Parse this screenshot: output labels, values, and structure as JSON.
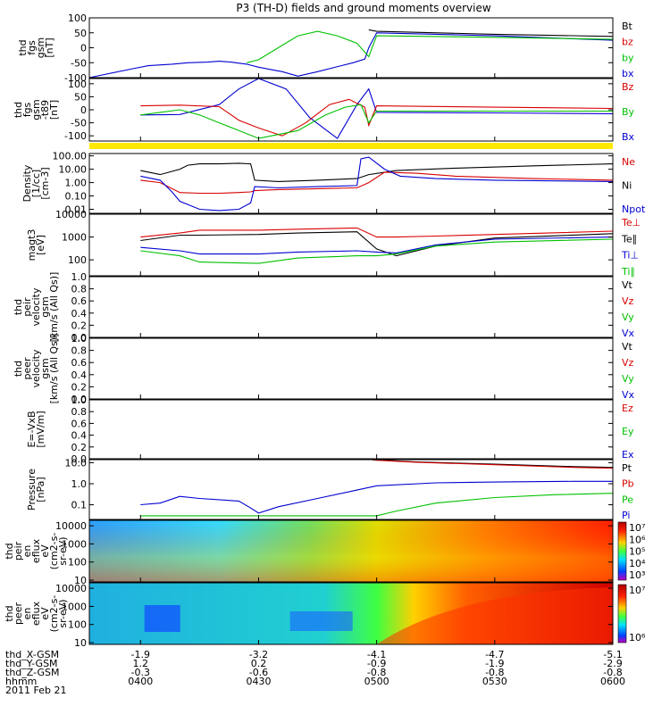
{
  "title": "P3 (TH-D) fields and ground moments overview",
  "colors": {
    "black": "#000000",
    "red": "#d80000",
    "green": "#00c000",
    "blue": "#0000d0",
    "yellow": "#ffe800"
  },
  "chart_data": [
    {
      "type": "line",
      "panel": "fgs",
      "ylabel": [
        "thd",
        "fgs",
        "gsm",
        "[nT]"
      ],
      "ylim": [
        -100,
        100
      ],
      "ticks": [
        "100",
        "50",
        "0",
        "-50",
        "-100"
      ],
      "legend": [
        {
          "text": "Bt",
          "color": "black"
        },
        {
          "text": "bz",
          "color": "red"
        },
        {
          "text": "by",
          "color": "green"
        },
        {
          "text": "bx",
          "color": "blue"
        }
      ],
      "series": [
        {
          "name": "bx",
          "color": "blue",
          "x": [
            "03:47",
            "03:58",
            "04:02",
            "04:08",
            "04:12",
            "04:17",
            "04:20",
            "04:23",
            "04:27",
            "04:30",
            "04:36",
            "04:40",
            "04:45",
            "04:51",
            "04:54",
            "04:57",
            "04:58",
            "05:00",
            "05:30",
            "06:00"
          ],
          "y": [
            -100,
            -70,
            -60,
            -55,
            -50,
            -48,
            -45,
            -48,
            -55,
            -65,
            -80,
            -95,
            -80,
            -60,
            -50,
            -38,
            0,
            50,
            40,
            25
          ]
        },
        {
          "name": "by",
          "color": "green",
          "x": [
            "04:27",
            "04:30",
            "04:35",
            "04:40",
            "04:45",
            "04:50",
            "04:55",
            "04:58",
            "05:00",
            "05:30",
            "06:00"
          ],
          "y": [
            -50,
            -40,
            0,
            40,
            55,
            40,
            15,
            -30,
            40,
            35,
            28
          ]
        },
        {
          "name": "Bt",
          "color": "black",
          "x": [
            "04:58",
            "05:00",
            "05:30",
            "06:00"
          ],
          "y": [
            60,
            55,
            45,
            38
          ]
        }
      ]
    },
    {
      "type": "line",
      "panel": "fgs_t89",
      "ylabel": [
        "thd",
        "fgs",
        "gsm",
        "-t89",
        "[nT]"
      ],
      "ylim": [
        -120,
        120
      ],
      "ticks": [
        "100",
        "50",
        "0",
        "-50",
        "-100"
      ],
      "legend": [
        {
          "text": "Bz",
          "color": "red"
        },
        {
          "text": "By",
          "color": "green"
        },
        {
          "text": "Bx",
          "color": "blue"
        }
      ],
      "series": [
        {
          "name": "Bx",
          "color": "blue",
          "x": [
            "04:00",
            "04:10",
            "04:20",
            "04:25",
            "04:30",
            "04:37",
            "04:43",
            "04:50",
            "04:55",
            "04:58",
            "05:00",
            "05:30",
            "06:00"
          ],
          "y": [
            -20,
            -18,
            20,
            80,
            120,
            80,
            -30,
            -110,
            20,
            80,
            -10,
            -12,
            -15
          ]
        },
        {
          "name": "Bz",
          "color": "red",
          "x": [
            "04:00",
            "04:10",
            "04:20",
            "04:25",
            "04:30",
            "04:36",
            "04:42",
            "04:48",
            "04:53",
            "04:57",
            "04:58",
            "05:00",
            "05:30",
            "06:00"
          ],
          "y": [
            15,
            18,
            12,
            -40,
            -70,
            -100,
            -50,
            20,
            40,
            10,
            -60,
            15,
            10,
            5
          ]
        },
        {
          "name": "By",
          "color": "green",
          "x": [
            "04:00",
            "04:05",
            "04:10",
            "04:15",
            "04:20",
            "04:25",
            "04:30",
            "04:40",
            "04:47",
            "04:52",
            "04:56",
            "04:58",
            "05:00",
            "05:30",
            "06:00"
          ],
          "y": [
            -20,
            -10,
            0,
            -20,
            -50,
            -80,
            -110,
            -80,
            -20,
            10,
            20,
            -50,
            -5,
            -5,
            -5
          ]
        }
      ]
    },
    {
      "type": "line",
      "panel": "density",
      "scale": "log",
      "ylabel": [
        "Density",
        "[1/cc]",
        "[cm-3]"
      ],
      "ylim": [
        0.005,
        150
      ],
      "ticks": [
        "100.00",
        "10.00",
        "1.00",
        "0.10",
        "0.01"
      ],
      "legend": [
        {
          "text": "Ne",
          "color": "red"
        },
        {
          "text": "Ni",
          "color": "black"
        },
        {
          "text": "Npot",
          "color": "blue"
        }
      ],
      "series": [
        {
          "name": "Ni",
          "color": "black",
          "x": [
            "04:00",
            "04:05",
            "04:10",
            "04:12",
            "04:15",
            "04:20",
            "04:25",
            "04:28",
            "04:29",
            "04:35",
            "04:45",
            "04:55",
            "04:58",
            "05:05",
            "05:20",
            "05:40",
            "06:00"
          ],
          "y": [
            8,
            4,
            10,
            20,
            25,
            25,
            28,
            25,
            1.5,
            1.2,
            1.5,
            2.0,
            4,
            8,
            12,
            18,
            25
          ]
        },
        {
          "name": "Ne",
          "color": "red",
          "x": [
            "04:00",
            "04:05",
            "04:10",
            "04:15",
            "04:20",
            "04:25",
            "04:28",
            "04:29",
            "04:35",
            "04:45",
            "04:55",
            "04:58",
            "05:02",
            "05:10",
            "05:20",
            "05:40",
            "06:00"
          ],
          "y": [
            1.5,
            1.0,
            0.18,
            0.16,
            0.16,
            0.18,
            0.2,
            0.25,
            0.3,
            0.35,
            0.4,
            1.0,
            6,
            5,
            3,
            2,
            1.5
          ]
        },
        {
          "name": "Npot",
          "color": "blue",
          "x": [
            "04:00",
            "04:05",
            "04:08",
            "04:10",
            "04:15",
            "04:20",
            "04:25",
            "04:28",
            "04:29",
            "04:35",
            "04:45",
            "04:55",
            "04:56",
            "04:58",
            "05:02",
            "05:06",
            "05:15",
            "05:30",
            "06:00"
          ],
          "y": [
            3,
            1.5,
            0.2,
            0.04,
            0.01,
            0.008,
            0.01,
            0.03,
            0.5,
            0.4,
            0.5,
            0.6,
            60,
            80,
            10,
            3,
            2,
            1.5,
            1.2
          ]
        }
      ]
    },
    {
      "type": "line",
      "panel": "temperature",
      "scale": "log",
      "ylabel": [
        "magt3",
        "[eV]"
      ],
      "ylim": [
        20,
        10000
      ],
      "ticks": [
        "10000",
        "1000",
        "100"
      ],
      "legend": [
        {
          "text": "Te⊥",
          "color": "red"
        },
        {
          "text": "Te∥",
          "color": "black"
        },
        {
          "text": "Ti⊥",
          "color": "blue"
        },
        {
          "text": "Ti∥",
          "color": "green"
        }
      ],
      "series": [
        {
          "name": "Te⊥",
          "color": "red",
          "x": [
            "04:00",
            "04:10",
            "04:15",
            "04:30",
            "04:40",
            "04:55",
            "05:00",
            "05:05",
            "05:15",
            "05:30",
            "06:00"
          ],
          "y": [
            1000,
            1500,
            2000,
            2000,
            2200,
            2500,
            1000,
            1000,
            1100,
            1300,
            1800
          ]
        },
        {
          "name": "Te∥",
          "color": "black",
          "x": [
            "04:00",
            "04:10",
            "04:15",
            "04:30",
            "04:40",
            "04:55",
            "05:00",
            "05:05",
            "05:15",
            "05:30",
            "06:00"
          ],
          "y": [
            700,
            1200,
            1200,
            1300,
            1500,
            1700,
            300,
            150,
            400,
            900,
            1400
          ]
        },
        {
          "name": "Ti⊥",
          "color": "blue",
          "x": [
            "04:00",
            "04:10",
            "04:15",
            "04:30",
            "04:40",
            "04:55",
            "05:00",
            "05:05",
            "05:15",
            "05:30",
            "06:00"
          ],
          "y": [
            350,
            250,
            180,
            180,
            220,
            250,
            220,
            200,
            450,
            800,
            1000
          ]
        },
        {
          "name": "Ti∥",
          "color": "green",
          "x": [
            "04:00",
            "04:10",
            "04:15",
            "04:30",
            "04:40",
            "04:55",
            "05:00",
            "05:05",
            "05:15",
            "05:30",
            "06:00"
          ],
          "y": [
            250,
            150,
            80,
            70,
            120,
            150,
            150,
            180,
            400,
            600,
            800
          ]
        }
      ]
    },
    {
      "type": "line",
      "panel": "peir_velocity",
      "ylabel": [
        "thd",
        "peir",
        "velocity",
        "gsm",
        "[km/s (All Qs)]"
      ],
      "ylim": [
        0,
        1
      ],
      "ticks": [
        "1.0",
        "0.8",
        "0.6",
        "0.4",
        "0.2",
        "0.0"
      ],
      "legend": [
        {
          "text": "Vt",
          "color": "black"
        },
        {
          "text": "Vz",
          "color": "red"
        },
        {
          "text": "Vy",
          "color": "green"
        },
        {
          "text": "Vx",
          "color": "blue"
        }
      ],
      "series": []
    },
    {
      "type": "line",
      "panel": "peer_velocity",
      "ylabel": [
        "thd",
        "peer",
        "velocity",
        "gsm",
        "[km/s (All Qs)]"
      ],
      "ylim": [
        0,
        1
      ],
      "ticks": [
        "1.0",
        "0.8",
        "0.6",
        "0.4",
        "0.2",
        "0.0"
      ],
      "legend": [
        {
          "text": "Vt",
          "color": "black"
        },
        {
          "text": "Vz",
          "color": "red"
        },
        {
          "text": "Vy",
          "color": "green"
        },
        {
          "text": "Vx",
          "color": "blue"
        }
      ],
      "series": []
    },
    {
      "type": "line",
      "panel": "efield",
      "ylabel": [
        "E=-VxB",
        "[mV/m]"
      ],
      "ylim": [
        0,
        1
      ],
      "ticks": [
        "1.0",
        "0.8",
        "0.6",
        "0.4",
        "0.2",
        "0.0"
      ],
      "legend": [
        {
          "text": "Ez",
          "color": "red"
        },
        {
          "text": "Ey",
          "color": "green"
        },
        {
          "text": "Ex",
          "color": "blue"
        }
      ],
      "series": []
    },
    {
      "type": "line",
      "panel": "pressure",
      "scale": "log",
      "ylabel": [
        "Pressure",
        "[nPa]"
      ],
      "ylim": [
        0.02,
        14
      ],
      "ticks": [
        "10.0",
        "1.0",
        "0.1"
      ],
      "legend": [
        {
          "text": "Pt",
          "color": "black"
        },
        {
          "text": "Pb",
          "color": "red"
        },
        {
          "text": "Pe",
          "color": "green"
        },
        {
          "text": "Pi",
          "color": "blue"
        }
      ],
      "series": [
        {
          "name": "Pi",
          "color": "blue",
          "x": [
            "04:00",
            "04:05",
            "04:10",
            "04:15",
            "04:25",
            "04:28",
            "04:30",
            "04:35",
            "04:45",
            "04:55",
            "05:00",
            "05:15",
            "05:30",
            "05:50",
            "06:00"
          ],
          "y": [
            0.1,
            0.12,
            0.25,
            0.2,
            0.15,
            0.07,
            0.04,
            0.08,
            0.2,
            0.5,
            0.8,
            1.1,
            1.2,
            1.3,
            1.3
          ]
        },
        {
          "name": "Pe",
          "color": "green",
          "x": [
            "04:00",
            "04:10",
            "04:20",
            "04:30",
            "04:40",
            "04:50",
            "05:00",
            "05:05",
            "05:15",
            "05:30",
            "05:45",
            "06:00"
          ],
          "y": [
            0.03,
            0.03,
            0.03,
            0.03,
            0.03,
            0.03,
            0.03,
            0.05,
            0.12,
            0.22,
            0.3,
            0.35
          ]
        },
        {
          "name": "Pt",
          "color": "black",
          "x": [
            "04:59",
            "05:10",
            "05:30",
            "05:50",
            "06:00"
          ],
          "y": [
            14,
            11,
            8.5,
            6.5,
            6
          ]
        },
        {
          "name": "Pb",
          "color": "red",
          "x": [
            "04:59",
            "05:10",
            "05:30",
            "05:50",
            "06:00"
          ],
          "y": [
            13.5,
            10.5,
            8,
            6,
            5.5
          ]
        }
      ]
    },
    {
      "type": "heatmap",
      "panel": "peir_spectrogram",
      "scale": "log",
      "ylabel": [
        "thd",
        "peir",
        "en",
        "eflux",
        "eV",
        "(cm2-s-",
        "sr-eV)"
      ],
      "ylim": [
        8,
        20000
      ],
      "ticks": [
        "10000",
        "1000",
        "100",
        "10"
      ],
      "colorbar_ticks": [
        "10⁷",
        "10⁶",
        "10⁵",
        "10⁴",
        "10³"
      ]
    },
    {
      "type": "heatmap",
      "panel": "peer_spectrogram",
      "scale": "log",
      "ylabel": [
        "thd",
        "peer",
        "en",
        "eflux",
        "eV",
        "(cm2-s-",
        "sr-eV)"
      ],
      "ylim": [
        8,
        20000
      ],
      "ticks": [
        "10000",
        "1000",
        "100",
        "10"
      ],
      "colorbar_ticks": [
        "10⁷",
        "10⁶"
      ]
    }
  ],
  "xaxis": {
    "xlim": [
      "03:47",
      "06:00"
    ],
    "major_ticks": [
      "04:00",
      "04:30",
      "05:00",
      "05:30",
      "06:00"
    ],
    "rows": [
      {
        "label": "thd_X-GSM",
        "values": [
          "-1.9",
          "-3.2",
          "-4.1",
          "-4.7",
          "-5.1"
        ]
      },
      {
        "label": "thd_Y-GSM",
        "values": [
          "1.2",
          "0.2",
          "-0.9",
          "-1.9",
          "-2.9"
        ]
      },
      {
        "label": "thd_Z-GSM",
        "values": [
          "-0.3",
          "-0.6",
          "-0.8",
          "-0.8",
          "-0.8"
        ]
      },
      {
        "label": "hhmm",
        "values": [
          "0400",
          "0430",
          "0500",
          "0530",
          "0600"
        ]
      }
    ],
    "date": "2011 Feb 21"
  }
}
